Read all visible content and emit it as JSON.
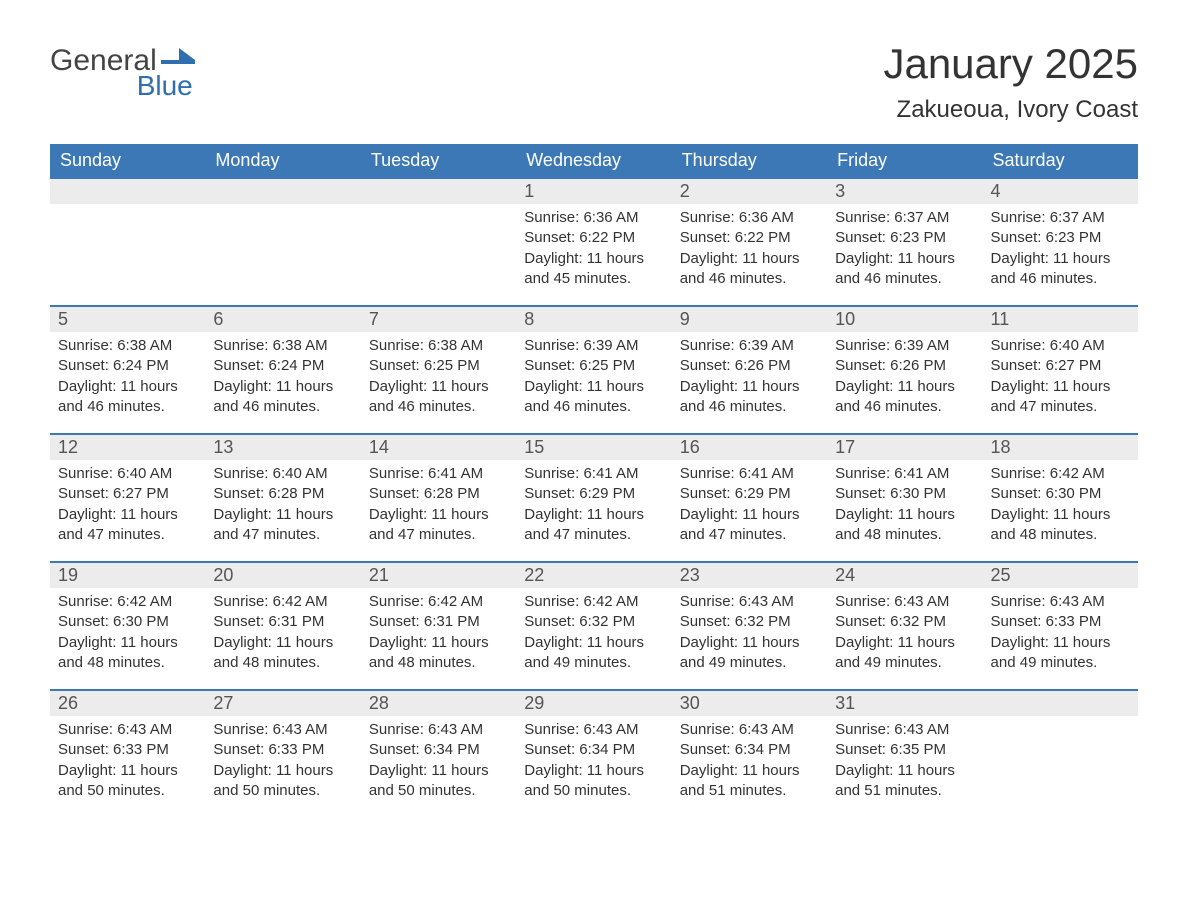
{
  "brand": {
    "part1": "General",
    "part2": "Blue",
    "flag_color": "#2f6fb0",
    "text_color": "#444"
  },
  "title": "January 2025",
  "location": "Zakueoua, Ivory Coast",
  "colors": {
    "header_bg": "#3b78b5",
    "header_text": "#ffffff",
    "row_accent": "#3b78b5",
    "daynum_bg": "#ececec",
    "body_text": "#333333",
    "page_bg": "#ffffff"
  },
  "fonts": {
    "title_size": 42,
    "location_size": 24,
    "header_size": 18,
    "daynum_size": 18,
    "body_size": 15
  },
  "weekdays": [
    "Sunday",
    "Monday",
    "Tuesday",
    "Wednesday",
    "Thursday",
    "Friday",
    "Saturday"
  ],
  "weeks": [
    [
      null,
      null,
      null,
      {
        "n": "1",
        "sunrise": "6:36 AM",
        "sunset": "6:22 PM",
        "daylight": "11 hours and 45 minutes."
      },
      {
        "n": "2",
        "sunrise": "6:36 AM",
        "sunset": "6:22 PM",
        "daylight": "11 hours and 46 minutes."
      },
      {
        "n": "3",
        "sunrise": "6:37 AM",
        "sunset": "6:23 PM",
        "daylight": "11 hours and 46 minutes."
      },
      {
        "n": "4",
        "sunrise": "6:37 AM",
        "sunset": "6:23 PM",
        "daylight": "11 hours and 46 minutes."
      }
    ],
    [
      {
        "n": "5",
        "sunrise": "6:38 AM",
        "sunset": "6:24 PM",
        "daylight": "11 hours and 46 minutes."
      },
      {
        "n": "6",
        "sunrise": "6:38 AM",
        "sunset": "6:24 PM",
        "daylight": "11 hours and 46 minutes."
      },
      {
        "n": "7",
        "sunrise": "6:38 AM",
        "sunset": "6:25 PM",
        "daylight": "11 hours and 46 minutes."
      },
      {
        "n": "8",
        "sunrise": "6:39 AM",
        "sunset": "6:25 PM",
        "daylight": "11 hours and 46 minutes."
      },
      {
        "n": "9",
        "sunrise": "6:39 AM",
        "sunset": "6:26 PM",
        "daylight": "11 hours and 46 minutes."
      },
      {
        "n": "10",
        "sunrise": "6:39 AM",
        "sunset": "6:26 PM",
        "daylight": "11 hours and 46 minutes."
      },
      {
        "n": "11",
        "sunrise": "6:40 AM",
        "sunset": "6:27 PM",
        "daylight": "11 hours and 47 minutes."
      }
    ],
    [
      {
        "n": "12",
        "sunrise": "6:40 AM",
        "sunset": "6:27 PM",
        "daylight": "11 hours and 47 minutes."
      },
      {
        "n": "13",
        "sunrise": "6:40 AM",
        "sunset": "6:28 PM",
        "daylight": "11 hours and 47 minutes."
      },
      {
        "n": "14",
        "sunrise": "6:41 AM",
        "sunset": "6:28 PM",
        "daylight": "11 hours and 47 minutes."
      },
      {
        "n": "15",
        "sunrise": "6:41 AM",
        "sunset": "6:29 PM",
        "daylight": "11 hours and 47 minutes."
      },
      {
        "n": "16",
        "sunrise": "6:41 AM",
        "sunset": "6:29 PM",
        "daylight": "11 hours and 47 minutes."
      },
      {
        "n": "17",
        "sunrise": "6:41 AM",
        "sunset": "6:30 PM",
        "daylight": "11 hours and 48 minutes."
      },
      {
        "n": "18",
        "sunrise": "6:42 AM",
        "sunset": "6:30 PM",
        "daylight": "11 hours and 48 minutes."
      }
    ],
    [
      {
        "n": "19",
        "sunrise": "6:42 AM",
        "sunset": "6:30 PM",
        "daylight": "11 hours and 48 minutes."
      },
      {
        "n": "20",
        "sunrise": "6:42 AM",
        "sunset": "6:31 PM",
        "daylight": "11 hours and 48 minutes."
      },
      {
        "n": "21",
        "sunrise": "6:42 AM",
        "sunset": "6:31 PM",
        "daylight": "11 hours and 48 minutes."
      },
      {
        "n": "22",
        "sunrise": "6:42 AM",
        "sunset": "6:32 PM",
        "daylight": "11 hours and 49 minutes."
      },
      {
        "n": "23",
        "sunrise": "6:43 AM",
        "sunset": "6:32 PM",
        "daylight": "11 hours and 49 minutes."
      },
      {
        "n": "24",
        "sunrise": "6:43 AM",
        "sunset": "6:32 PM",
        "daylight": "11 hours and 49 minutes."
      },
      {
        "n": "25",
        "sunrise": "6:43 AM",
        "sunset": "6:33 PM",
        "daylight": "11 hours and 49 minutes."
      }
    ],
    [
      {
        "n": "26",
        "sunrise": "6:43 AM",
        "sunset": "6:33 PM",
        "daylight": "11 hours and 50 minutes."
      },
      {
        "n": "27",
        "sunrise": "6:43 AM",
        "sunset": "6:33 PM",
        "daylight": "11 hours and 50 minutes."
      },
      {
        "n": "28",
        "sunrise": "6:43 AM",
        "sunset": "6:34 PM",
        "daylight": "11 hours and 50 minutes."
      },
      {
        "n": "29",
        "sunrise": "6:43 AM",
        "sunset": "6:34 PM",
        "daylight": "11 hours and 50 minutes."
      },
      {
        "n": "30",
        "sunrise": "6:43 AM",
        "sunset": "6:34 PM",
        "daylight": "11 hours and 51 minutes."
      },
      {
        "n": "31",
        "sunrise": "6:43 AM",
        "sunset": "6:35 PM",
        "daylight": "11 hours and 51 minutes."
      },
      null
    ]
  ],
  "labels": {
    "sunrise": "Sunrise:",
    "sunset": "Sunset:",
    "daylight": "Daylight:"
  }
}
